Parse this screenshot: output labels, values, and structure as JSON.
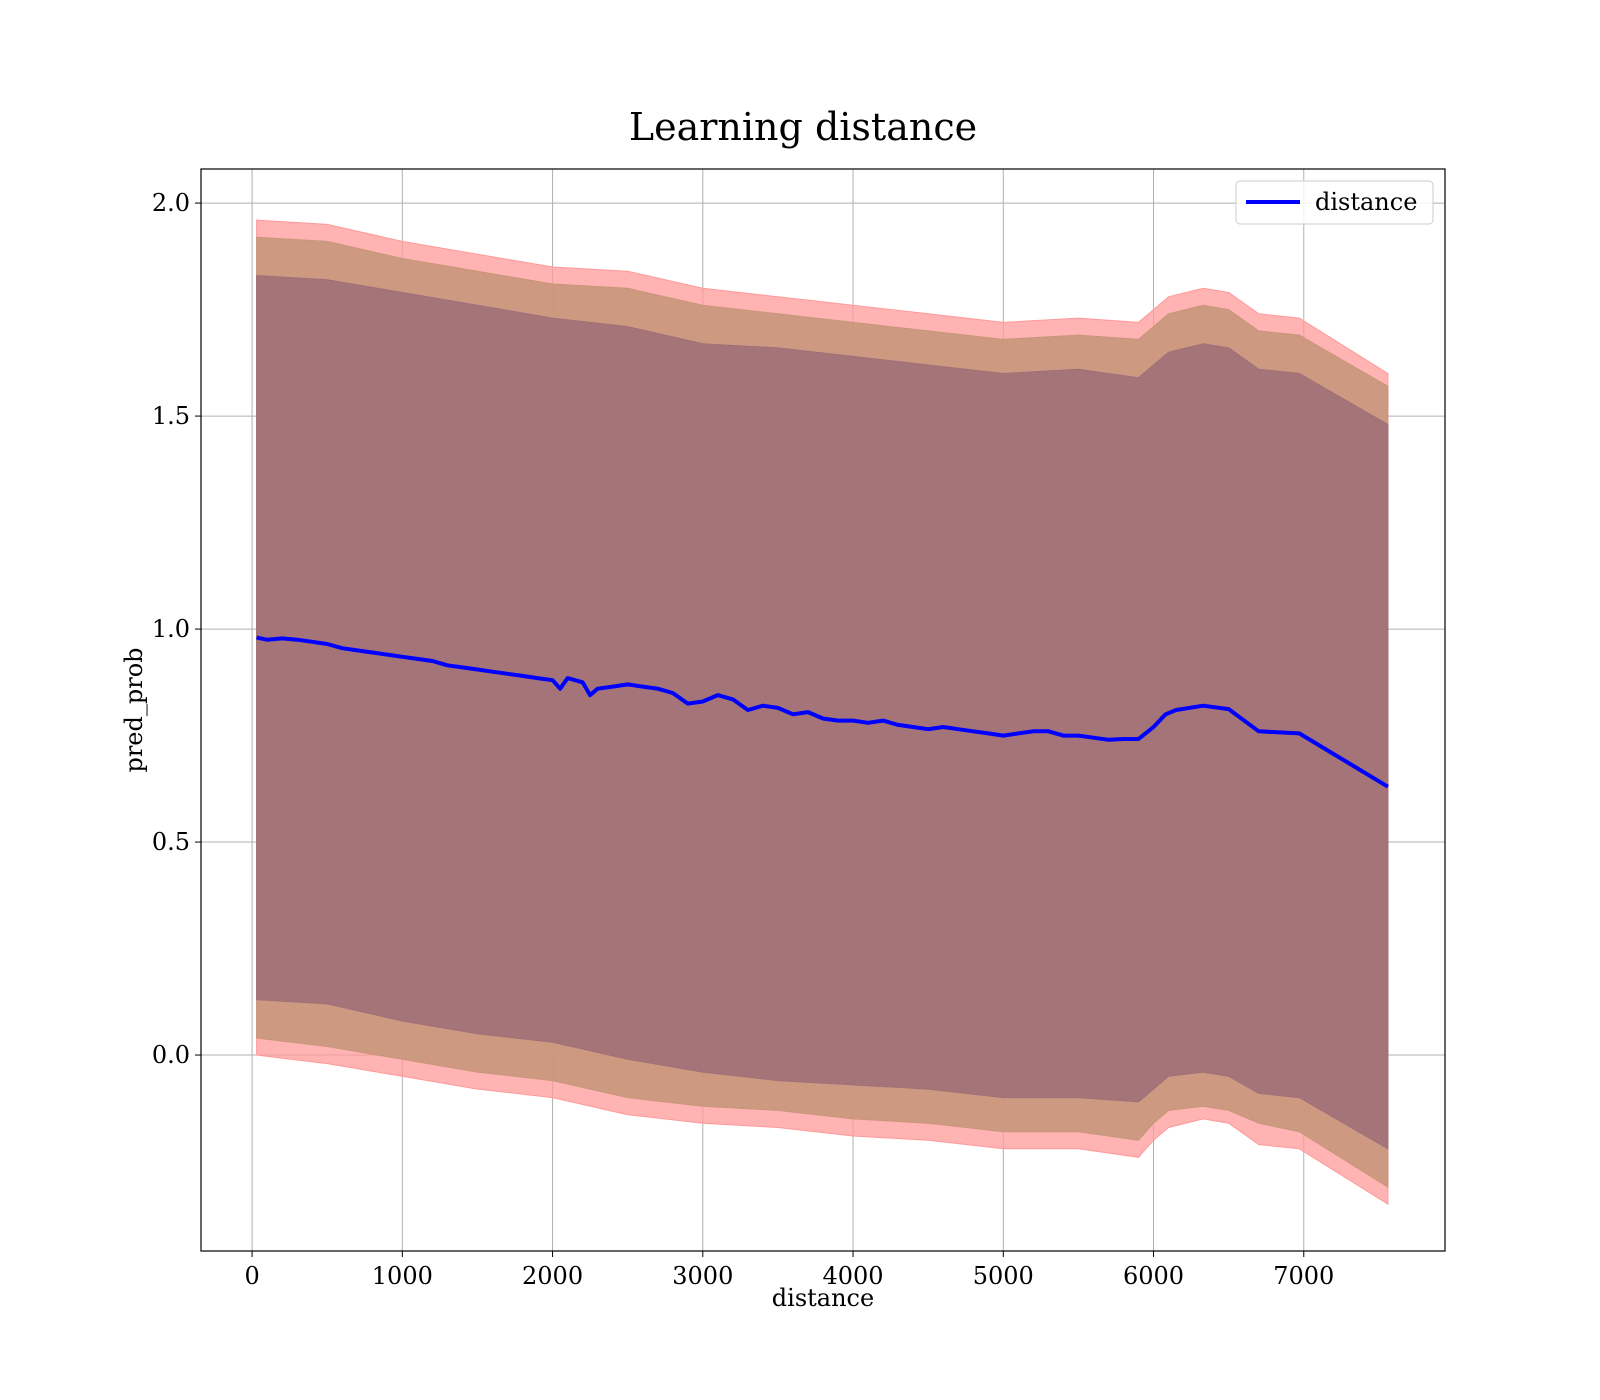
{
  "chart_data": {
    "type": "line",
    "title": "Learning distance",
    "xlabel": "distance",
    "ylabel": "pred_prob",
    "xlim": [
      -340,
      7940
    ],
    "ylim": [
      -0.46,
      2.08
    ],
    "grid": true,
    "legend_position": "top-right",
    "xticks": [
      0,
      1000,
      2000,
      3000,
      4000,
      5000,
      6000,
      7000
    ],
    "xtick_labels": [
      "0",
      "1000",
      "2000",
      "3000",
      "4000",
      "5000",
      "6000",
      "7000"
    ],
    "yticks": [
      0.0,
      0.5,
      1.0,
      1.5,
      2.0
    ],
    "ytick_labels": [
      "0.0",
      "0.5",
      "1.0",
      "1.5",
      "2.0"
    ],
    "colors": {
      "line": "#0000ff",
      "band_outer": "#ff9999",
      "band_middle": "#c8967a",
      "band_inner": "#a07078"
    },
    "series": [
      {
        "name": "distance",
        "x": [
          30,
          100,
          200,
          300,
          400,
          500,
          600,
          700,
          800,
          900,
          1000,
          1100,
          1200,
          1300,
          1400,
          1500,
          1600,
          1700,
          1800,
          1900,
          2000,
          2050,
          2100,
          2200,
          2250,
          2300,
          2400,
          2500,
          2600,
          2700,
          2800,
          2900,
          3000,
          3100,
          3200,
          3300,
          3400,
          3500,
          3600,
          3700,
          3800,
          3900,
          4000,
          4100,
          4200,
          4300,
          4400,
          4500,
          4600,
          4700,
          4800,
          4900,
          5000,
          5100,
          5200,
          5300,
          5400,
          5500,
          5600,
          5700,
          5800,
          5900,
          6000,
          6080,
          6150,
          6330,
          6500,
          6700,
          6970,
          7560
        ],
        "values": [
          0.98,
          0.975,
          0.978,
          0.975,
          0.97,
          0.965,
          0.955,
          0.95,
          0.945,
          0.94,
          0.935,
          0.93,
          0.925,
          0.915,
          0.91,
          0.905,
          0.9,
          0.895,
          0.89,
          0.885,
          0.88,
          0.86,
          0.885,
          0.875,
          0.845,
          0.86,
          0.865,
          0.87,
          0.865,
          0.86,
          0.85,
          0.825,
          0.83,
          0.845,
          0.835,
          0.81,
          0.82,
          0.815,
          0.8,
          0.805,
          0.79,
          0.785,
          0.785,
          0.78,
          0.785,
          0.775,
          0.77,
          0.765,
          0.77,
          0.765,
          0.76,
          0.755,
          0.75,
          0.755,
          0.76,
          0.76,
          0.75,
          0.75,
          0.745,
          0.74,
          0.742,
          0.742,
          0.77,
          0.8,
          0.81,
          0.82,
          0.812,
          0.76,
          0.755,
          0.63
        ]
      }
    ],
    "bands": [
      {
        "x": [
          30,
          500,
          1000,
          1500,
          2000,
          2500,
          3000,
          3500,
          4000,
          4500,
          5000,
          5500,
          5900,
          6000,
          6100,
          6330,
          6500,
          6700,
          6970,
          7560
        ],
        "upper": [
          1.96,
          1.95,
          1.91,
          1.88,
          1.85,
          1.84,
          1.8,
          1.78,
          1.76,
          1.74,
          1.72,
          1.73,
          1.72,
          1.75,
          1.78,
          1.8,
          1.79,
          1.74,
          1.73,
          1.6
        ],
        "lower": [
          0.0,
          -0.02,
          -0.05,
          -0.08,
          -0.1,
          -0.14,
          -0.16,
          -0.17,
          -0.19,
          -0.2,
          -0.22,
          -0.22,
          -0.24,
          -0.2,
          -0.17,
          -0.15,
          -0.16,
          -0.21,
          -0.22,
          -0.35
        ]
      },
      {
        "x": [
          30,
          500,
          1000,
          1500,
          2000,
          2500,
          3000,
          3500,
          4000,
          4500,
          5000,
          5500,
          5900,
          6000,
          6100,
          6330,
          6500,
          6700,
          6970,
          7560
        ],
        "upper": [
          1.92,
          1.91,
          1.87,
          1.84,
          1.81,
          1.8,
          1.76,
          1.74,
          1.72,
          1.7,
          1.68,
          1.69,
          1.68,
          1.71,
          1.74,
          1.76,
          1.75,
          1.7,
          1.69,
          1.57
        ],
        "lower": [
          0.04,
          0.02,
          -0.01,
          -0.04,
          -0.06,
          -0.1,
          -0.12,
          -0.13,
          -0.15,
          -0.16,
          -0.18,
          -0.18,
          -0.2,
          -0.16,
          -0.13,
          -0.12,
          -0.13,
          -0.16,
          -0.18,
          -0.31
        ]
      },
      {
        "x": [
          30,
          500,
          1000,
          1500,
          2000,
          2500,
          3000,
          3500,
          4000,
          4500,
          5000,
          5500,
          5900,
          6000,
          6100,
          6330,
          6500,
          6700,
          6970,
          7560
        ],
        "upper": [
          1.83,
          1.82,
          1.79,
          1.76,
          1.73,
          1.71,
          1.67,
          1.66,
          1.64,
          1.62,
          1.6,
          1.61,
          1.59,
          1.62,
          1.65,
          1.67,
          1.66,
          1.61,
          1.6,
          1.48
        ],
        "lower": [
          0.13,
          0.12,
          0.08,
          0.05,
          0.03,
          -0.01,
          -0.04,
          -0.06,
          -0.07,
          -0.08,
          -0.1,
          -0.1,
          -0.11,
          -0.08,
          -0.05,
          -0.04,
          -0.05,
          -0.09,
          -0.1,
          -0.22
        ]
      }
    ]
  }
}
